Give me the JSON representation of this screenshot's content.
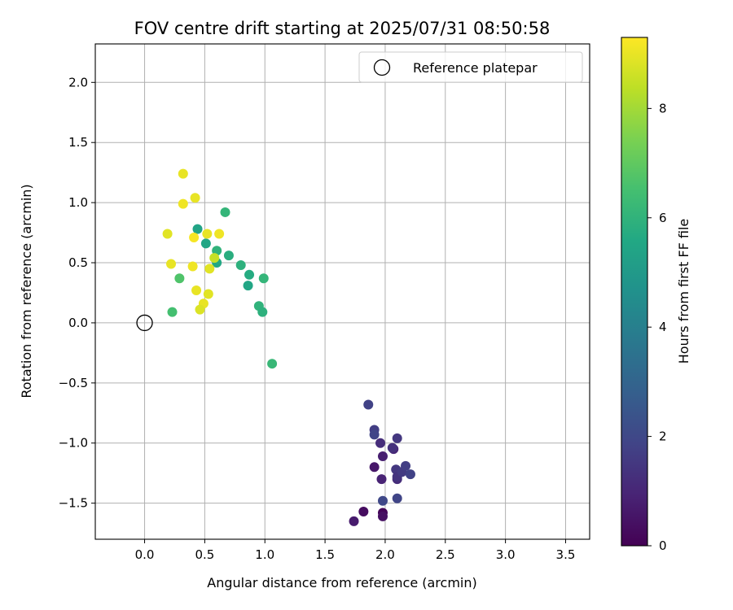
{
  "chart_data": {
    "type": "scatter",
    "title": "FOV centre drift starting at 2025/07/31 08:50:58",
    "xlabel": "Angular distance from reference (arcmin)",
    "ylabel": "Rotation from reference (arcmin)",
    "xlim": [
      -0.41,
      3.7
    ],
    "ylim": [
      -1.8,
      2.32
    ],
    "xticks": [
      "0.0",
      "0.5",
      "1.0",
      "1.5",
      "2.0",
      "2.5",
      "3.0",
      "3.5"
    ],
    "yticks": [
      "−1.5",
      "−1.0",
      "−0.5",
      "0.0",
      "0.5",
      "1.0",
      "1.5",
      "2.0"
    ],
    "grid": true,
    "legend": {
      "placement": "top-right",
      "entries": [
        "Reference platepar"
      ]
    },
    "reference_point": {
      "x": 0.0,
      "y": 0.0
    },
    "colorbar": {
      "label": "Hours from first FF file",
      "range": [
        0,
        9.3
      ],
      "ticks": [
        "0",
        "2",
        "4",
        "6",
        "8"
      ],
      "colormap": "viridis"
    },
    "points": [
      {
        "x": 1.98,
        "y": -1.58,
        "h": 0.1
      },
      {
        "x": 1.82,
        "y": -1.57,
        "h": 0.3
      },
      {
        "x": 1.98,
        "y": -1.61,
        "h": 0.4
      },
      {
        "x": 1.74,
        "y": -1.65,
        "h": 0.7
      },
      {
        "x": 1.91,
        "y": -1.2,
        "h": 0.6
      },
      {
        "x": 1.97,
        "y": -1.3,
        "h": 0.9
      },
      {
        "x": 1.98,
        "y": -1.11,
        "h": 0.8
      },
      {
        "x": 2.1,
        "y": -1.3,
        "h": 1.2
      },
      {
        "x": 2.07,
        "y": -1.05,
        "h": 1.0
      },
      {
        "x": 2.06,
        "y": -1.04,
        "h": 1.3
      },
      {
        "x": 1.96,
        "y": -1.0,
        "h": 1.2
      },
      {
        "x": 2.09,
        "y": -1.22,
        "h": 1.5
      },
      {
        "x": 2.1,
        "y": -1.28,
        "h": 1.4
      },
      {
        "x": 2.14,
        "y": -1.24,
        "h": 1.6
      },
      {
        "x": 2.17,
        "y": -1.19,
        "h": 1.7
      },
      {
        "x": 2.21,
        "y": -1.26,
        "h": 1.8
      },
      {
        "x": 2.1,
        "y": -0.96,
        "h": 1.5
      },
      {
        "x": 2.1,
        "y": -1.46,
        "h": 1.9
      },
      {
        "x": 1.98,
        "y": -1.48,
        "h": 2.0
      },
      {
        "x": 1.91,
        "y": -0.89,
        "h": 1.7
      },
      {
        "x": 1.91,
        "y": -0.93,
        "h": 1.9
      },
      {
        "x": 1.86,
        "y": -0.68,
        "h": 1.8
      },
      {
        "x": 1.06,
        "y": -0.34,
        "h": 6.2
      },
      {
        "x": 0.99,
        "y": 0.37,
        "h": 6.1
      },
      {
        "x": 0.95,
        "y": 0.14,
        "h": 6.0
      },
      {
        "x": 0.98,
        "y": 0.09,
        "h": 5.9
      },
      {
        "x": 0.87,
        "y": 0.4,
        "h": 5.7
      },
      {
        "x": 0.86,
        "y": 0.31,
        "h": 5.5
      },
      {
        "x": 0.8,
        "y": 0.48,
        "h": 5.9
      },
      {
        "x": 0.7,
        "y": 0.56,
        "h": 5.8
      },
      {
        "x": 0.67,
        "y": 0.92,
        "h": 6.1
      },
      {
        "x": 0.6,
        "y": 0.6,
        "h": 6.0
      },
      {
        "x": 0.6,
        "y": 0.5,
        "h": 5.6
      },
      {
        "x": 0.51,
        "y": 0.66,
        "h": 5.5
      },
      {
        "x": 0.44,
        "y": 0.78,
        "h": 5.4
      },
      {
        "x": 0.29,
        "y": 0.37,
        "h": 6.7
      },
      {
        "x": 0.23,
        "y": 0.09,
        "h": 6.5
      },
      {
        "x": 0.32,
        "y": 1.24,
        "h": 9.0
      },
      {
        "x": 0.32,
        "y": 0.99,
        "h": 9.1
      },
      {
        "x": 0.42,
        "y": 1.04,
        "h": 9.0
      },
      {
        "x": 0.19,
        "y": 0.74,
        "h": 8.9
      },
      {
        "x": 0.41,
        "y": 0.71,
        "h": 9.2
      },
      {
        "x": 0.52,
        "y": 0.74,
        "h": 9.0
      },
      {
        "x": 0.62,
        "y": 0.74,
        "h": 9.1
      },
      {
        "x": 0.58,
        "y": 0.54,
        "h": 8.5
      },
      {
        "x": 0.54,
        "y": 0.45,
        "h": 8.9
      },
      {
        "x": 0.22,
        "y": 0.49,
        "h": 9.0
      },
      {
        "x": 0.4,
        "y": 0.47,
        "h": 9.1
      },
      {
        "x": 0.43,
        "y": 0.27,
        "h": 9.0
      },
      {
        "x": 0.53,
        "y": 0.24,
        "h": 8.9
      },
      {
        "x": 0.49,
        "y": 0.16,
        "h": 9.0
      },
      {
        "x": 0.46,
        "y": 0.11,
        "h": 8.8
      }
    ]
  }
}
